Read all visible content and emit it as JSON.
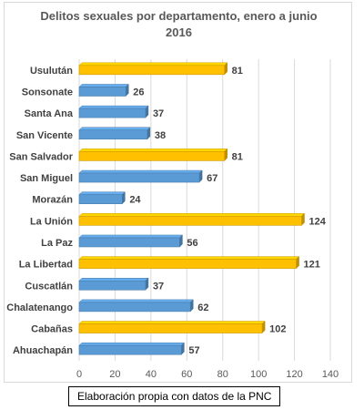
{
  "chart_data": {
    "type": "bar",
    "orientation": "horizontal",
    "title_lines": [
      "Delitos sexuales por departamento, enero a junio",
      "2016"
    ],
    "categories": [
      "Usulután",
      "Sonsonate",
      "Santa Ana",
      "San Vicente",
      "San Salvador",
      "San Miguel",
      "Morazán",
      "La Unión",
      "La Paz",
      "La Libertad",
      "Cuscatlán",
      "Chalatenango",
      "Cabañas",
      "Ahuachapán"
    ],
    "values": [
      81,
      26,
      37,
      38,
      81,
      67,
      24,
      124,
      56,
      121,
      37,
      62,
      102,
      57
    ],
    "highlighted": [
      true,
      false,
      false,
      false,
      true,
      false,
      false,
      true,
      false,
      true,
      false,
      false,
      true,
      false
    ],
    "xlim": [
      0,
      140
    ],
    "x_ticks": [
      "0",
      "20",
      "40",
      "60",
      "80",
      "100",
      "120",
      "140"
    ],
    "grid": "vertical",
    "data_labels": true,
    "colors": {
      "highlight": "#ffc000",
      "normal": "#5b9bd5",
      "label": "#404040",
      "grid": "#d9d9d9"
    }
  },
  "source_note": "Elaboración propia con datos de la PNC"
}
